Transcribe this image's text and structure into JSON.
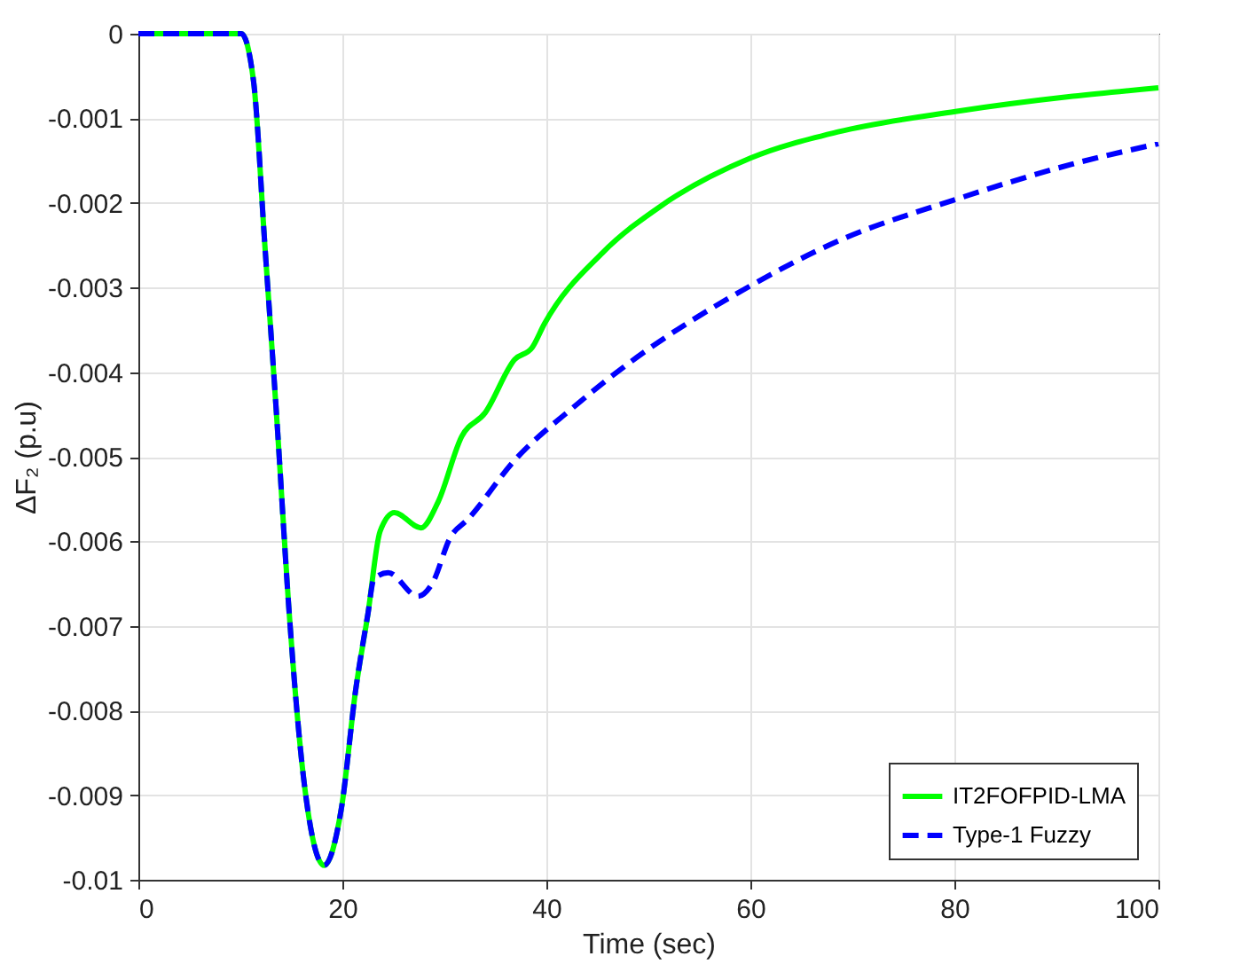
{
  "chart_data": {
    "type": "line",
    "xlabel": "Time (sec)",
    "ylabel": "ΔF₂ (p.u)",
    "xlim": [
      0,
      100
    ],
    "xticks": [
      0,
      20,
      40,
      60,
      80,
      100
    ],
    "ylim": [
      -0.01,
      0
    ],
    "yticks": [
      -0.01,
      -0.009,
      -0.008,
      -0.007,
      -0.006,
      -0.005,
      -0.004,
      -0.003,
      -0.002,
      -0.001,
      0
    ],
    "grid": true,
    "legend": "bottom right",
    "series": [
      {
        "name": "IT2FOFPID-LMA",
        "color": "#00ff00",
        "line_style": "solid",
        "x": [
          0,
          10.1,
          11.3,
          12.4,
          13.6,
          14.7,
          16.2,
          18.2,
          19.9,
          21.3,
          22.5,
          23.7,
          25.1,
          27.7,
          29.4,
          31.7,
          34.0,
          36.9,
          38.6,
          39.8,
          45.5,
          51.3,
          60,
          68.6,
          80.1,
          91.6,
          100
        ],
        "values": [
          0,
          0,
          -0.00057,
          -0.0025,
          -0.0046,
          -0.0067,
          -0.0088,
          -0.00983,
          -0.00916,
          -0.00776,
          -0.00686,
          -0.00588,
          -0.00566,
          -0.00584,
          -0.00553,
          -0.00476,
          -0.00448,
          -0.00385,
          -0.00371,
          -0.00343,
          -0.00259,
          -0.00203,
          -0.00147,
          -0.00116,
          -0.00092,
          -0.00074,
          -0.00064
        ]
      },
      {
        "name": "Type-1 Fuzzy",
        "color": "#0000ff",
        "line_style": "dashed",
        "x": [
          0,
          10.1,
          11.3,
          12.4,
          13.6,
          14.7,
          16.2,
          18.2,
          19.9,
          21.3,
          22.5,
          23.1,
          24.5,
          27.4,
          28.8,
          30.6,
          32.3,
          36.9,
          42.7,
          47.8,
          60,
          68.6,
          80.1,
          91.6,
          100
        ],
        "values": [
          0,
          0,
          -0.00057,
          -0.0025,
          -0.0046,
          -0.0067,
          -0.0088,
          -0.00983,
          -0.00916,
          -0.00776,
          -0.00686,
          -0.00644,
          -0.00637,
          -0.00665,
          -0.0065,
          -0.00595,
          -0.00574,
          -0.00504,
          -0.00441,
          -0.00392,
          -0.00298,
          -0.00245,
          -0.00196,
          -0.00154,
          -0.0013
        ]
      }
    ]
  }
}
